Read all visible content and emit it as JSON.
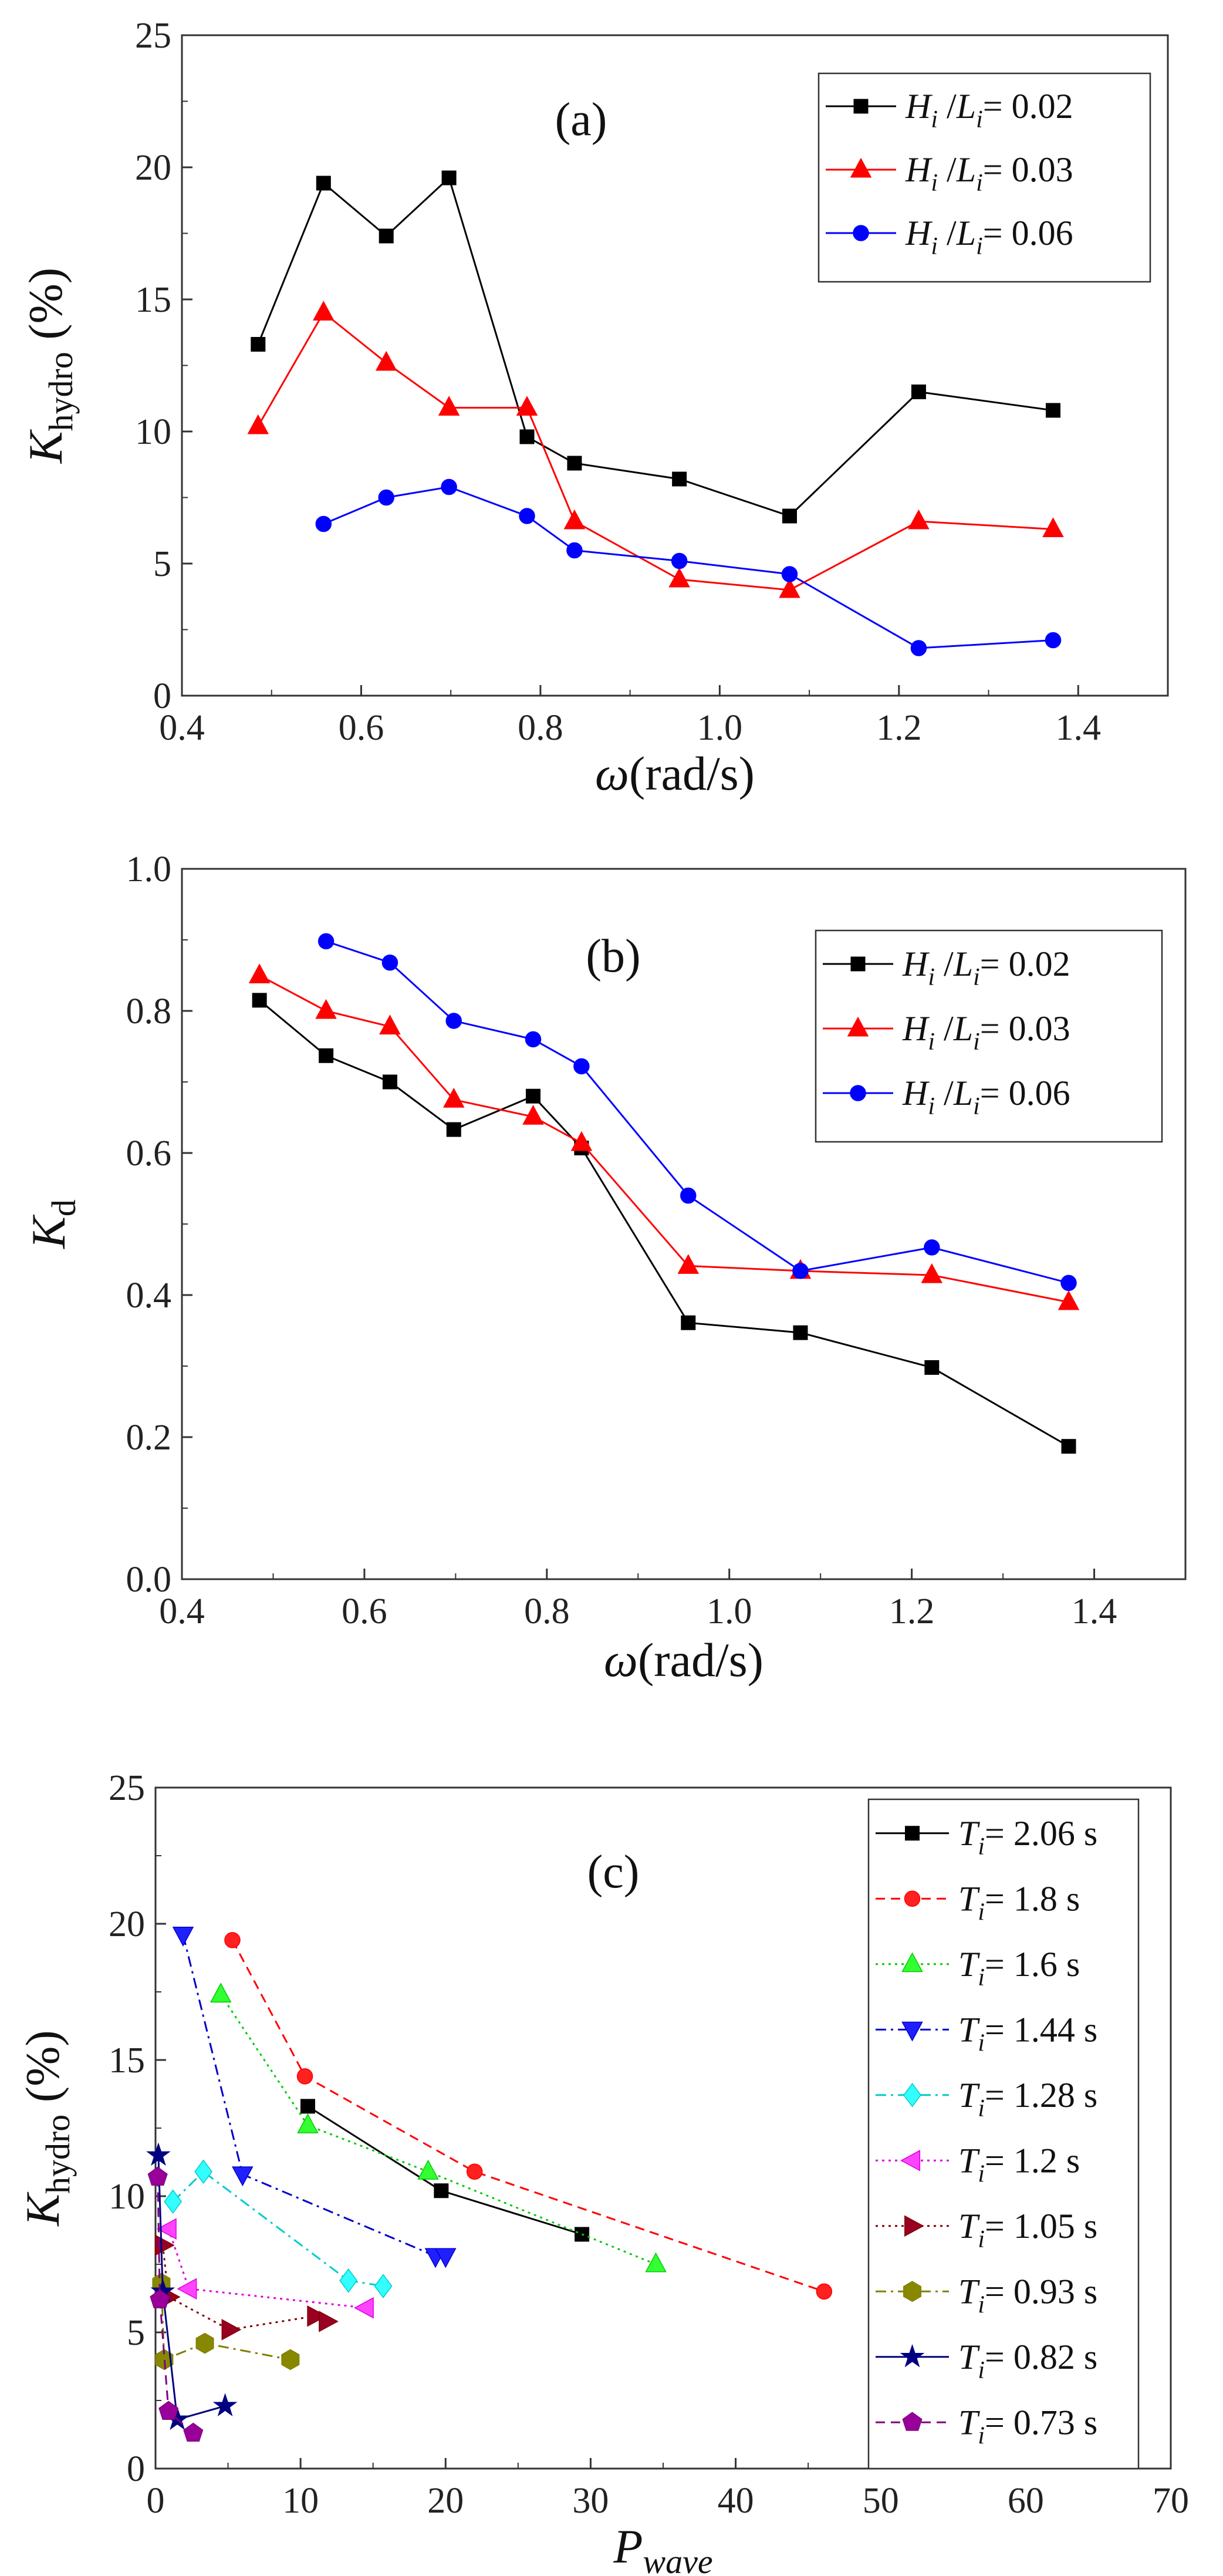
{
  "chart_data": [
    {
      "id": "a",
      "type": "line",
      "title": "(a)",
      "xlabel": "ω(rad/s)",
      "ylabel": "K_hydro (%)",
      "xlim": [
        0.4,
        1.5
      ],
      "ylim": [
        0,
        25
      ],
      "xticks": [
        "0.4",
        "0.6",
        "0.8",
        "1.0",
        "1.2",
        "1.4"
      ],
      "yticks": [
        "0",
        "5",
        "10",
        "15",
        "20",
        "25"
      ],
      "series": [
        {
          "name": "Hi/Li= 0.02",
          "label_sym": "H",
          "label_sym2": "L",
          "label_sub": "i",
          "label_val": "= 0.02",
          "color": "#000000",
          "marker": "square",
          "dash": "solid",
          "x": [
            0.485,
            0.558,
            0.628,
            0.698,
            0.785,
            0.838,
            0.955,
            1.078,
            1.222,
            1.372
          ],
          "y": [
            13.3,
            19.4,
            17.4,
            19.6,
            9.8,
            8.8,
            8.2,
            6.8,
            11.5,
            10.8
          ]
        },
        {
          "name": "Hi/Li= 0.03",
          "label_sym": "H",
          "label_sym2": "L",
          "label_sub": "i",
          "label_val": "= 0.03",
          "color": "#ff0000",
          "marker": "triangle",
          "dash": "solid",
          "x": [
            0.485,
            0.558,
            0.628,
            0.698,
            0.785,
            0.838,
            0.955,
            1.078,
            1.222,
            1.372
          ],
          "y": [
            10.2,
            14.5,
            12.6,
            10.9,
            10.9,
            6.6,
            4.4,
            4.0,
            6.6,
            6.3
          ]
        },
        {
          "name": "Hi/Li= 0.06",
          "label_sym": "H",
          "label_sym2": "L",
          "label_sub": "i",
          "label_val": "= 0.06",
          "color": "#0000ff",
          "marker": "circle",
          "dash": "solid",
          "x": [
            0.558,
            0.628,
            0.698,
            0.785,
            0.838,
            0.955,
            1.078,
            1.222,
            1.372
          ],
          "y": [
            6.5,
            7.5,
            7.9,
            6.8,
            5.5,
            5.1,
            4.6,
            1.8,
            2.1
          ]
        }
      ]
    },
    {
      "id": "b",
      "type": "line",
      "title": "(b)",
      "xlabel": "ω(rad/s)",
      "ylabel": "K_d",
      "xlim": [
        0.4,
        1.5
      ],
      "ylim": [
        0,
        1.0
      ],
      "xticks": [
        "0.4",
        "0.6",
        "0.8",
        "1.0",
        "1.2",
        "1.4"
      ],
      "yticks": [
        "0.0",
        "0.2",
        "0.4",
        "0.6",
        "0.8",
        "1.0"
      ],
      "series": [
        {
          "name": "Hi/Li= 0.02",
          "label_sym": "H",
          "label_sym2": "L",
          "label_sub": "i",
          "label_val": "= 0.02",
          "color": "#000000",
          "marker": "square",
          "dash": "solid",
          "x": [
            0.485,
            0.558,
            0.628,
            0.698,
            0.785,
            0.838,
            0.955,
            1.078,
            1.222,
            1.372
          ],
          "y": [
            0.815,
            0.737,
            0.7,
            0.633,
            0.68,
            0.607,
            0.361,
            0.347,
            0.298,
            0.187
          ]
        },
        {
          "name": "Hi/Li= 0.03",
          "label_sym": "H",
          "label_sym2": "L",
          "label_sub": "i",
          "label_val": "= 0.03",
          "color": "#ff0000",
          "marker": "triangle",
          "dash": "solid",
          "x": [
            0.485,
            0.558,
            0.628,
            0.698,
            0.785,
            0.838,
            0.955,
            1.078,
            1.222,
            1.372
          ],
          "y": [
            0.85,
            0.8,
            0.778,
            0.675,
            0.651,
            0.614,
            0.441,
            0.434,
            0.428,
            0.39
          ]
        },
        {
          "name": "Hi/Li= 0.06",
          "label_sym": "H",
          "label_sym2": "L",
          "label_sub": "i",
          "label_val": "= 0.06",
          "color": "#0000ff",
          "marker": "circle",
          "dash": "solid",
          "x": [
            0.558,
            0.628,
            0.698,
            0.785,
            0.838,
            0.955,
            1.078,
            1.222,
            1.372
          ],
          "y": [
            0.898,
            0.868,
            0.786,
            0.76,
            0.722,
            0.54,
            0.434,
            0.467,
            0.417
          ]
        }
      ]
    },
    {
      "id": "c",
      "type": "line",
      "title": "(c)",
      "xlabel": "P_wave",
      "ylabel": "K_hydro (%)",
      "xlim": [
        0,
        70
      ],
      "ylim": [
        0,
        25
      ],
      "xticks": [
        "0",
        "10",
        "20",
        "30",
        "40",
        "50",
        "60",
        "70"
      ],
      "yticks": [
        "0",
        "5",
        "10",
        "15",
        "20",
        "25"
      ],
      "series": [
        {
          "name": "Ti= 2.06 s",
          "label_sym": "T",
          "label_sub": "i",
          "label_val": "= 2.06 s",
          "color": "#000000",
          "marker": "square",
          "dash": "solid",
          "x": [
            10.5,
            19.7,
            29.4
          ],
          "y": [
            13.3,
            10.2,
            8.6
          ]
        },
        {
          "name": "Ti= 1.8 s",
          "label_sym": "T",
          "label_sub": "i",
          "label_val": "= 1.8 s",
          "color": "#ff0000",
          "marker": "circle",
          "dash": "dash",
          "fill": "#ff2020",
          "x": [
            5.3,
            10.3,
            22.0,
            46.1
          ],
          "y": [
            19.4,
            14.4,
            10.9,
            6.5
          ]
        },
        {
          "name": "Ti= 1.6 s",
          "label_sym": "T",
          "label_sub": "i",
          "label_val": "= 1.6 s",
          "color": "#00cc00",
          "marker": "triangle",
          "dash": "dot",
          "fill": "#33ff33",
          "x": [
            4.5,
            10.5,
            18.8,
            34.5
          ],
          "y": [
            17.4,
            12.6,
            10.9,
            7.5
          ]
        },
        {
          "name": "Ti= 1.44 s",
          "label_sym": "T",
          "label_sub": "i",
          "label_val": "= 1.44 s",
          "color": "#0000cc",
          "marker": "tridown",
          "dash": "dashdot",
          "fill": "#2020ff",
          "x": [
            1.9,
            6.0,
            19.3,
            20.0
          ],
          "y": [
            19.6,
            10.8,
            7.8,
            7.8
          ]
        },
        {
          "name": "Ti= 1.28 s",
          "label_sym": "T",
          "label_sub": "i",
          "label_val": "= 1.28 s",
          "color": "#00cccc",
          "marker": "diamond",
          "dash": "dashdot",
          "fill": "#33ffff",
          "x": [
            1.2,
            3.3,
            13.3,
            15.7
          ],
          "y": [
            9.8,
            10.9,
            6.9,
            6.7
          ]
        },
        {
          "name": "Ti= 1.2 s",
          "label_sym": "T",
          "label_sub": "i",
          "label_val": "= 1.2 s",
          "color": "#dd00dd",
          "marker": "triangle-left",
          "dash": "dot",
          "fill": "#ff44ff",
          "x": [
            0.9,
            2.3,
            14.5
          ],
          "y": [
            8.8,
            6.6,
            5.9
          ]
        },
        {
          "name": "Ti= 1.05 s",
          "label_sym": "T",
          "label_sub": "i",
          "label_val": "= 1.05 s",
          "color": "#800000",
          "marker": "triangle-right",
          "dash": "dot",
          "fill": "#990022",
          "x": [
            0.5,
            0.9,
            5.1,
            11.0,
            11.8
          ],
          "y": [
            8.2,
            6.3,
            5.1,
            5.6,
            5.4
          ]
        },
        {
          "name": "Ti= 0.93 s",
          "label_sym": "T",
          "label_sub": "i",
          "label_val": "= 0.93 s",
          "color": "#808000",
          "marker": "hexagon",
          "dash": "dashdot",
          "fill": "#888800",
          "x": [
            0.4,
            0.6,
            3.4,
            9.3
          ],
          "y": [
            6.8,
            4.0,
            4.6,
            4.0
          ]
        },
        {
          "name": "Ti= 0.82 s",
          "label_sym": "T",
          "label_sub": "i",
          "label_val": "= 0.82 s",
          "color": "#000080",
          "marker": "star",
          "dash": "solid",
          "fill": "#000080",
          "x": [
            0.2,
            0.5,
            1.5,
            4.8
          ],
          "y": [
            11.5,
            6.5,
            1.8,
            2.3
          ]
        },
        {
          "name": "Ti= 0.73 s",
          "label_sym": "T",
          "label_sub": "i",
          "label_val": "= 0.73 s",
          "color": "#800080",
          "marker": "pentagon",
          "dash": "dash",
          "fill": "#990099",
          "x": [
            0.15,
            0.3,
            0.9,
            2.6
          ],
          "y": [
            10.7,
            6.2,
            2.1,
            1.3
          ]
        }
      ]
    }
  ]
}
